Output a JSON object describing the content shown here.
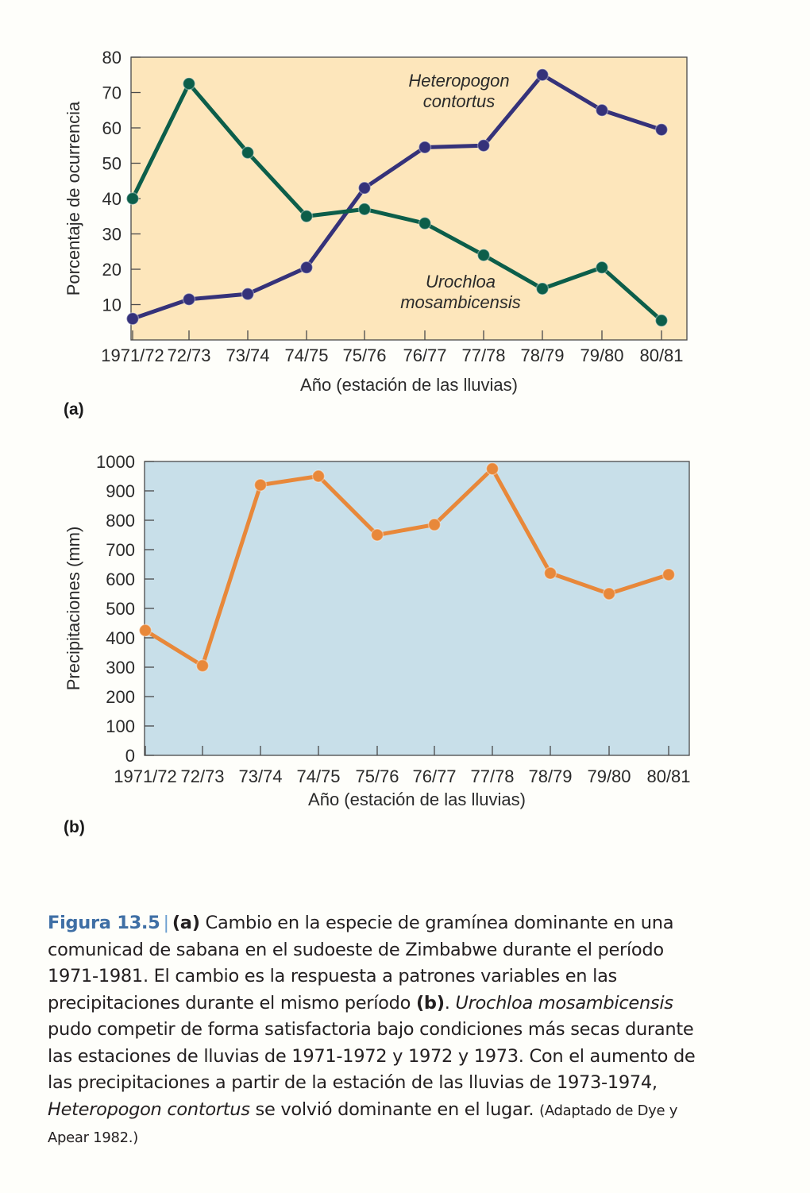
{
  "charts": [
    {
      "id": "a",
      "panel_label": "(a)",
      "chart_data": {
        "type": "line",
        "categories": [
          "1971/72",
          "72/73",
          "73/74",
          "74/75",
          "75/76",
          "76/77",
          "77/78",
          "78/79",
          "79/80",
          "80/81"
        ],
        "series": [
          {
            "name": "Heteropogon contortus",
            "label_lines": [
              "Heteropogon",
              "contortus"
            ],
            "color": "#35327a",
            "values": [
              6,
              11.5,
              13,
              20.5,
              43,
              54.5,
              55,
              75,
              65,
              59.5
            ]
          },
          {
            "name": "Urochloa mosambicensis",
            "label_lines": [
              "Urochloa",
              "mosambicensis"
            ],
            "color": "#0c5e4a",
            "values": [
              40,
              72.5,
              53,
              35,
              37,
              33,
              24,
              14.5,
              20.5,
              5.5
            ]
          }
        ],
        "xlabel": "Año (estación de las lluvias)",
        "ylabel": "Porcentaje de ocurrencia",
        "ylim": [
          0,
          80
        ],
        "yticks": [
          10,
          20,
          30,
          40,
          50,
          60,
          70,
          80
        ],
        "background": "#fde6bb",
        "grid": false
      }
    },
    {
      "id": "b",
      "panel_label": "(b)",
      "chart_data": {
        "type": "line",
        "categories": [
          "1971/72",
          "72/73",
          "73/74",
          "74/75",
          "75/76",
          "76/77",
          "77/78",
          "78/79",
          "79/80",
          "80/81"
        ],
        "series": [
          {
            "name": "",
            "color": "#e8883a",
            "values": [
              425,
              305,
              920,
              950,
              750,
              785,
              975,
              620,
              550,
              615
            ]
          }
        ],
        "xlabel": "Año (estación de las lluvias)",
        "ylabel": "Precipitaciones (mm)",
        "ylim": [
          0,
          1000
        ],
        "yticks": [
          0,
          100,
          200,
          300,
          400,
          500,
          600,
          700,
          800,
          900,
          1000
        ],
        "background": "#c8dfe9",
        "grid": false
      }
    }
  ],
  "caption": {
    "figure_label": "Figura 13.5",
    "separator": "|",
    "ref_a": "(a)",
    "part1": " Cambio en la especie de gramínea dominante en una comunicad de sabana en el sudoeste de Zimbabwe durante el período 1971-1981. El cambio es la respuesta a patrones variables en las precipitaciones durante el mismo período ",
    "ref_b": "(b)",
    "part2": ". ",
    "species1": "Urochloa mosambicensis",
    "part3": " pudo competir de forma satisfactoria bajo condiciones más secas durante las estaciones de lluvias de 1971-1972 y 1972 y 1973. Con el aumento de las precipitaciones a partir de la estación de las lluvias de 1973-1974, ",
    "species2": "Heteropogon contortus",
    "part4": " se volvió dominante en el lugar. ",
    "source": "(Adaptado de Dye y Apear 1982.)"
  }
}
